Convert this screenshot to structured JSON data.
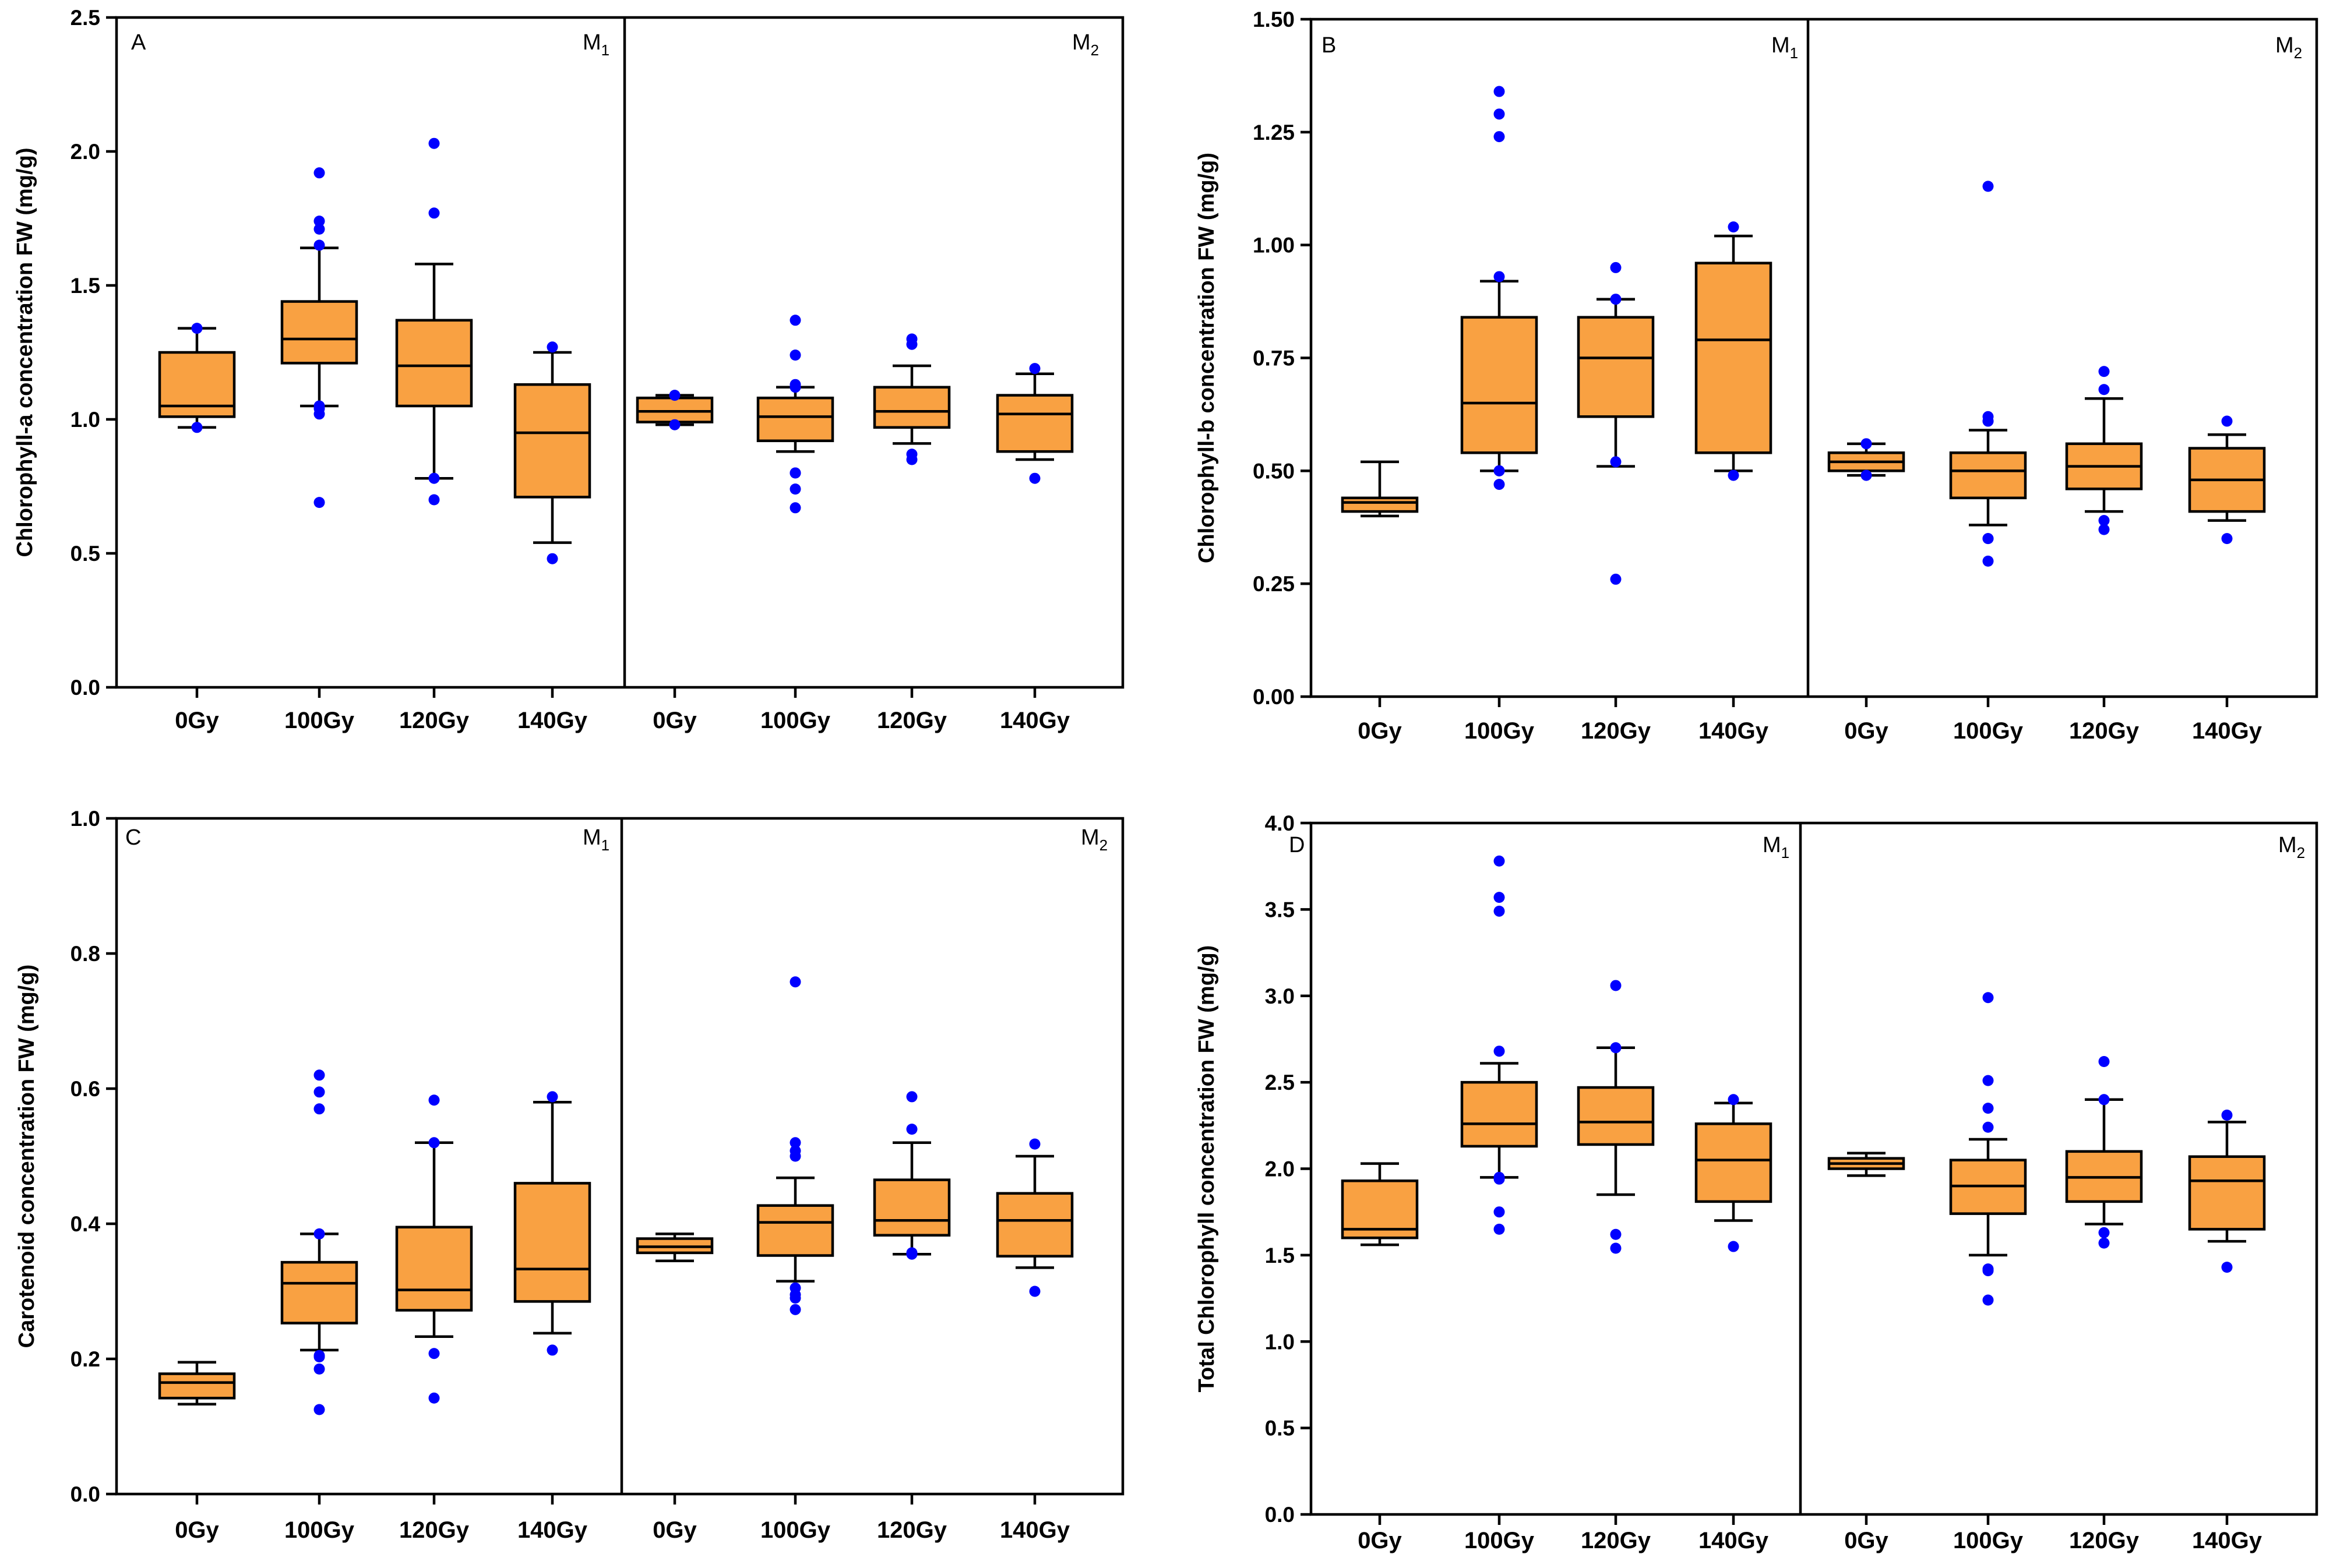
{
  "colors": {
    "box_fill": "#f9a142",
    "outlier": "#0000ff",
    "axis": "#000000"
  },
  "chart_data": [
    {
      "type": "box",
      "panel": "A",
      "title": "",
      "ylabel": "Chlorophyll-a concentration FW (mg/g)",
      "ylim": [
        0,
        2.5
      ],
      "yticks": [
        "0.0",
        "0.5",
        "1.0",
        "1.5",
        "2.0",
        "2.5"
      ],
      "generations": [
        {
          "name": "M",
          "sub": "1"
        },
        {
          "name": "M",
          "sub": "2"
        }
      ],
      "categories": [
        "0Gy",
        "100Gy",
        "120Gy",
        "140Gy",
        "0Gy",
        "100Gy",
        "120Gy",
        "140Gy"
      ],
      "series": [
        {
          "group": "M1",
          "category": "0Gy",
          "whisker_low": 0.97,
          "q1": 1.01,
          "median": 1.05,
          "q3": 1.25,
          "whisker_high": 1.34,
          "outliers": [
            0.97,
            1.34
          ]
        },
        {
          "group": "M1",
          "category": "100Gy",
          "whisker_low": 1.05,
          "q1": 1.21,
          "median": 1.3,
          "q3": 1.44,
          "whisker_high": 1.64,
          "outliers": [
            0.69,
            1.02,
            1.04,
            1.05,
            1.65,
            1.71,
            1.74,
            1.92
          ]
        },
        {
          "group": "M1",
          "category": "120Gy",
          "whisker_low": 0.78,
          "q1": 1.05,
          "median": 1.2,
          "q3": 1.37,
          "whisker_high": 1.58,
          "outliers": [
            0.7,
            0.78,
            1.77,
            2.03
          ]
        },
        {
          "group": "M1",
          "category": "140Gy",
          "whisker_low": 0.54,
          "q1": 0.71,
          "median": 0.95,
          "q3": 1.13,
          "whisker_high": 1.25,
          "outliers": [
            0.48,
            1.27
          ]
        },
        {
          "group": "M2",
          "category": "0Gy",
          "whisker_low": 0.98,
          "q1": 0.99,
          "median": 1.03,
          "q3": 1.08,
          "whisker_high": 1.09,
          "outliers": [
            0.98,
            1.09
          ]
        },
        {
          "group": "M2",
          "category": "100Gy",
          "whisker_low": 0.88,
          "q1": 0.92,
          "median": 1.01,
          "q3": 1.08,
          "whisker_high": 1.12,
          "outliers": [
            0.67,
            0.74,
            0.8,
            0.8,
            1.12,
            1.13,
            1.24,
            1.37
          ]
        },
        {
          "group": "M2",
          "category": "120Gy",
          "whisker_low": 0.91,
          "q1": 0.97,
          "median": 1.03,
          "q3": 1.12,
          "whisker_high": 1.2,
          "outliers": [
            0.85,
            0.87,
            1.28,
            1.3
          ]
        },
        {
          "group": "M2",
          "category": "140Gy",
          "whisker_low": 0.85,
          "q1": 0.88,
          "median": 1.02,
          "q3": 1.09,
          "whisker_high": 1.17,
          "outliers": [
            0.78,
            1.19
          ]
        }
      ]
    },
    {
      "type": "box",
      "panel": "B",
      "title": "",
      "ylabel": "Chlorophyll-b concentration FW (mg/g)",
      "ylim": [
        0,
        1.5
      ],
      "yticks": [
        "0.00",
        "0.25",
        "0.50",
        "0.75",
        "1.00",
        "1.25",
        "1.50"
      ],
      "generations": [
        {
          "name": "M",
          "sub": "1"
        },
        {
          "name": "M",
          "sub": "2"
        }
      ],
      "categories": [
        "0Gy",
        "100Gy",
        "120Gy",
        "140Gy",
        "0Gy",
        "100Gy",
        "120Gy",
        "140Gy"
      ],
      "series": [
        {
          "group": "M1",
          "category": "0Gy",
          "whisker_low": 0.4,
          "q1": 0.41,
          "median": 0.43,
          "q3": 0.44,
          "whisker_high": 0.52,
          "outliers": []
        },
        {
          "group": "M1",
          "category": "100Gy",
          "whisker_low": 0.5,
          "q1": 0.54,
          "median": 0.65,
          "q3": 0.84,
          "whisker_high": 0.92,
          "outliers": [
            0.47,
            0.5,
            0.5,
            0.93,
            1.24,
            1.29,
            1.34
          ]
        },
        {
          "group": "M1",
          "category": "120Gy",
          "whisker_low": 0.51,
          "q1": 0.62,
          "median": 0.75,
          "q3": 0.84,
          "whisker_high": 0.88,
          "outliers": [
            0.26,
            0.52,
            0.88,
            0.95
          ]
        },
        {
          "group": "M1",
          "category": "140Gy",
          "whisker_low": 0.5,
          "q1": 0.54,
          "median": 0.79,
          "q3": 0.96,
          "whisker_high": 1.02,
          "outliers": [
            0.49,
            1.04
          ]
        },
        {
          "group": "M2",
          "category": "0Gy",
          "whisker_low": 0.49,
          "q1": 0.5,
          "median": 0.52,
          "q3": 0.54,
          "whisker_high": 0.56,
          "outliers": [
            0.49,
            0.56
          ]
        },
        {
          "group": "M2",
          "category": "100Gy",
          "whisker_low": 0.38,
          "q1": 0.44,
          "median": 0.5,
          "q3": 0.54,
          "whisker_high": 0.59,
          "outliers": [
            0.3,
            0.35,
            0.35,
            0.61,
            0.61,
            0.62,
            1.13
          ]
        },
        {
          "group": "M2",
          "category": "120Gy",
          "whisker_low": 0.41,
          "q1": 0.46,
          "median": 0.51,
          "q3": 0.56,
          "whisker_high": 0.66,
          "outliers": [
            0.37,
            0.39,
            0.68,
            0.72
          ]
        },
        {
          "group": "M2",
          "category": "140Gy",
          "whisker_low": 0.39,
          "q1": 0.41,
          "median": 0.48,
          "q3": 0.55,
          "whisker_high": 0.58,
          "outliers": [
            0.35,
            0.61
          ]
        }
      ]
    },
    {
      "type": "box",
      "panel": "C",
      "title": "",
      "ylabel": "Carotenoid concentration FW (mg/g)",
      "ylim": [
        0,
        1.0
      ],
      "yticks": [
        "0.0",
        "0.2",
        "0.4",
        "0.6",
        "0.8",
        "1.0"
      ],
      "generations": [
        {
          "name": "M",
          "sub": "1"
        },
        {
          "name": "M",
          "sub": "2"
        }
      ],
      "categories": [
        "0Gy",
        "100Gy",
        "120Gy",
        "140Gy",
        "0Gy",
        "100Gy",
        "120Gy",
        "140Gy"
      ],
      "series": [
        {
          "group": "M1",
          "category": "0Gy",
          "whisker_low": 0.133,
          "q1": 0.142,
          "median": 0.165,
          "q3": 0.178,
          "whisker_high": 0.195,
          "outliers": []
        },
        {
          "group": "M1",
          "category": "100Gy",
          "whisker_low": 0.213,
          "q1": 0.253,
          "median": 0.312,
          "q3": 0.343,
          "whisker_high": 0.385,
          "outliers": [
            0.125,
            0.185,
            0.203,
            0.205,
            0.385,
            0.57,
            0.595,
            0.62
          ]
        },
        {
          "group": "M1",
          "category": "120Gy",
          "whisker_low": 0.233,
          "q1": 0.272,
          "median": 0.302,
          "q3": 0.395,
          "whisker_high": 0.52,
          "outliers": [
            0.142,
            0.208,
            0.52,
            0.583
          ]
        },
        {
          "group": "M1",
          "category": "140Gy",
          "whisker_low": 0.238,
          "q1": 0.285,
          "median": 0.333,
          "q3": 0.46,
          "whisker_high": 0.58,
          "outliers": [
            0.213,
            0.588
          ]
        },
        {
          "group": "M2",
          "category": "0Gy",
          "whisker_low": 0.345,
          "q1": 0.357,
          "median": 0.366,
          "q3": 0.378,
          "whisker_high": 0.385,
          "outliers": []
        },
        {
          "group": "M2",
          "category": "100Gy",
          "whisker_low": 0.315,
          "q1": 0.353,
          "median": 0.402,
          "q3": 0.427,
          "whisker_high": 0.468,
          "outliers": [
            0.273,
            0.29,
            0.295,
            0.305,
            0.5,
            0.508,
            0.52,
            0.758
          ]
        },
        {
          "group": "M2",
          "category": "120Gy",
          "whisker_low": 0.355,
          "q1": 0.383,
          "median": 0.405,
          "q3": 0.465,
          "whisker_high": 0.52,
          "outliers": [
            0.355,
            0.357,
            0.54,
            0.588
          ]
        },
        {
          "group": "M2",
          "category": "140Gy",
          "whisker_low": 0.335,
          "q1": 0.352,
          "median": 0.405,
          "q3": 0.445,
          "whisker_high": 0.5,
          "outliers": [
            0.3,
            0.518
          ]
        }
      ]
    },
    {
      "type": "box",
      "panel": "D",
      "title": "",
      "ylabel": "Total Chlorophyll concentration FW (mg/g)",
      "ylim": [
        0,
        4.0
      ],
      "yticks": [
        "0.0",
        "0.5",
        "1.0",
        "1.5",
        "2.0",
        "2.5",
        "3.0",
        "3.5",
        "4.0"
      ],
      "generations": [
        {
          "name": "M",
          "sub": "1"
        },
        {
          "name": "M",
          "sub": "2"
        }
      ],
      "categories": [
        "0Gy",
        "100Gy",
        "120Gy",
        "140Gy",
        "0Gy",
        "100Gy",
        "120Gy",
        "140Gy"
      ],
      "series": [
        {
          "group": "M1",
          "category": "0Gy",
          "whisker_low": 1.56,
          "q1": 1.6,
          "median": 1.65,
          "q3": 1.93,
          "whisker_high": 2.03,
          "outliers": []
        },
        {
          "group": "M1",
          "category": "100Gy",
          "whisker_low": 1.95,
          "q1": 2.13,
          "median": 2.26,
          "q3": 2.5,
          "whisker_high": 2.61,
          "outliers": [
            1.65,
            1.75,
            1.94,
            1.95,
            2.68,
            3.49,
            3.57,
            3.78
          ]
        },
        {
          "group": "M1",
          "category": "120Gy",
          "whisker_low": 1.85,
          "q1": 2.14,
          "median": 2.27,
          "q3": 2.47,
          "whisker_high": 2.7,
          "outliers": [
            1.54,
            1.62,
            2.7,
            3.06
          ]
        },
        {
          "group": "M1",
          "category": "140Gy",
          "whisker_low": 1.7,
          "q1": 1.81,
          "median": 2.05,
          "q3": 2.26,
          "whisker_high": 2.38,
          "outliers": [
            1.55,
            2.4
          ]
        },
        {
          "group": "M2",
          "category": "0Gy",
          "whisker_low": 1.96,
          "q1": 2.0,
          "median": 2.03,
          "q3": 2.06,
          "whisker_high": 2.09,
          "outliers": []
        },
        {
          "group": "M2",
          "category": "100Gy",
          "whisker_low": 1.5,
          "q1": 1.74,
          "median": 1.9,
          "q3": 2.05,
          "whisker_high": 2.17,
          "outliers": [
            1.24,
            1.41,
            1.42,
            2.24,
            2.35,
            2.51,
            2.99
          ]
        },
        {
          "group": "M2",
          "category": "120Gy",
          "whisker_low": 1.68,
          "q1": 1.81,
          "median": 1.95,
          "q3": 2.1,
          "whisker_high": 2.4,
          "outliers": [
            1.57,
            1.63,
            2.4,
            2.62
          ]
        },
        {
          "group": "M2",
          "category": "140Gy",
          "whisker_low": 1.58,
          "q1": 1.65,
          "median": 1.93,
          "q3": 2.07,
          "whisker_high": 2.27,
          "outliers": [
            1.43,
            2.31
          ]
        }
      ]
    }
  ]
}
